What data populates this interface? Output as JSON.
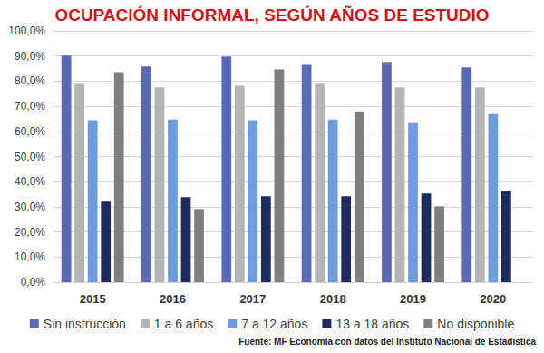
{
  "chart_data": {
    "type": "bar",
    "title": "OCUPACIÓN INFORMAL, SEGÚN AÑOS DE ESTUDIO",
    "annotations": [
      "Fuente: MF Economía con datos del Instituto Nacional de Estadística"
    ],
    "categories": [
      "2015",
      "2016",
      "2017",
      "2018",
      "2019",
      "2020"
    ],
    "series": [
      {
        "name": "Sin instrucción",
        "color": "#5a69b4",
        "values": [
          90.2,
          85.8,
          89.8,
          86.5,
          87.6,
          85.5
        ]
      },
      {
        "name": "1 a 6 años",
        "color": "#b4b4b4",
        "values": [
          78.9,
          77.5,
          78.2,
          78.9,
          77.5,
          77.5
        ]
      },
      {
        "name": "7 a 12 años",
        "color": "#6e9ce0",
        "values": [
          64.4,
          64.7,
          64.4,
          64.7,
          63.6,
          66.9
        ]
      },
      {
        "name": "13 a 18 años",
        "color": "#1f2a5e",
        "values": [
          32.0,
          33.8,
          34.2,
          34.2,
          35.3,
          36.4
        ]
      },
      {
        "name": "No disponible",
        "color": "#7f7f7f",
        "values": [
          83.6,
          29.1,
          84.7,
          68.0,
          30.2,
          null
        ]
      }
    ],
    "ylim": [
      0,
      100
    ],
    "yticks": [
      {
        "value": 0,
        "label": "0,0%"
      },
      {
        "value": 10,
        "label": "10,0%"
      },
      {
        "value": 20,
        "label": "20,0%"
      },
      {
        "value": 30,
        "label": "30,0%"
      },
      {
        "value": 40,
        "label": "40,0%"
      },
      {
        "value": 50,
        "label": "50,0%"
      },
      {
        "value": 60,
        "label": "60,0%"
      },
      {
        "value": 70,
        "label": "70,0%"
      },
      {
        "value": 80,
        "label": "80,0%"
      },
      {
        "value": 90,
        "label": "90,0%"
      },
      {
        "value": 100,
        "label": "100,0%"
      }
    ],
    "grid": true,
    "legend": "bottom"
  }
}
